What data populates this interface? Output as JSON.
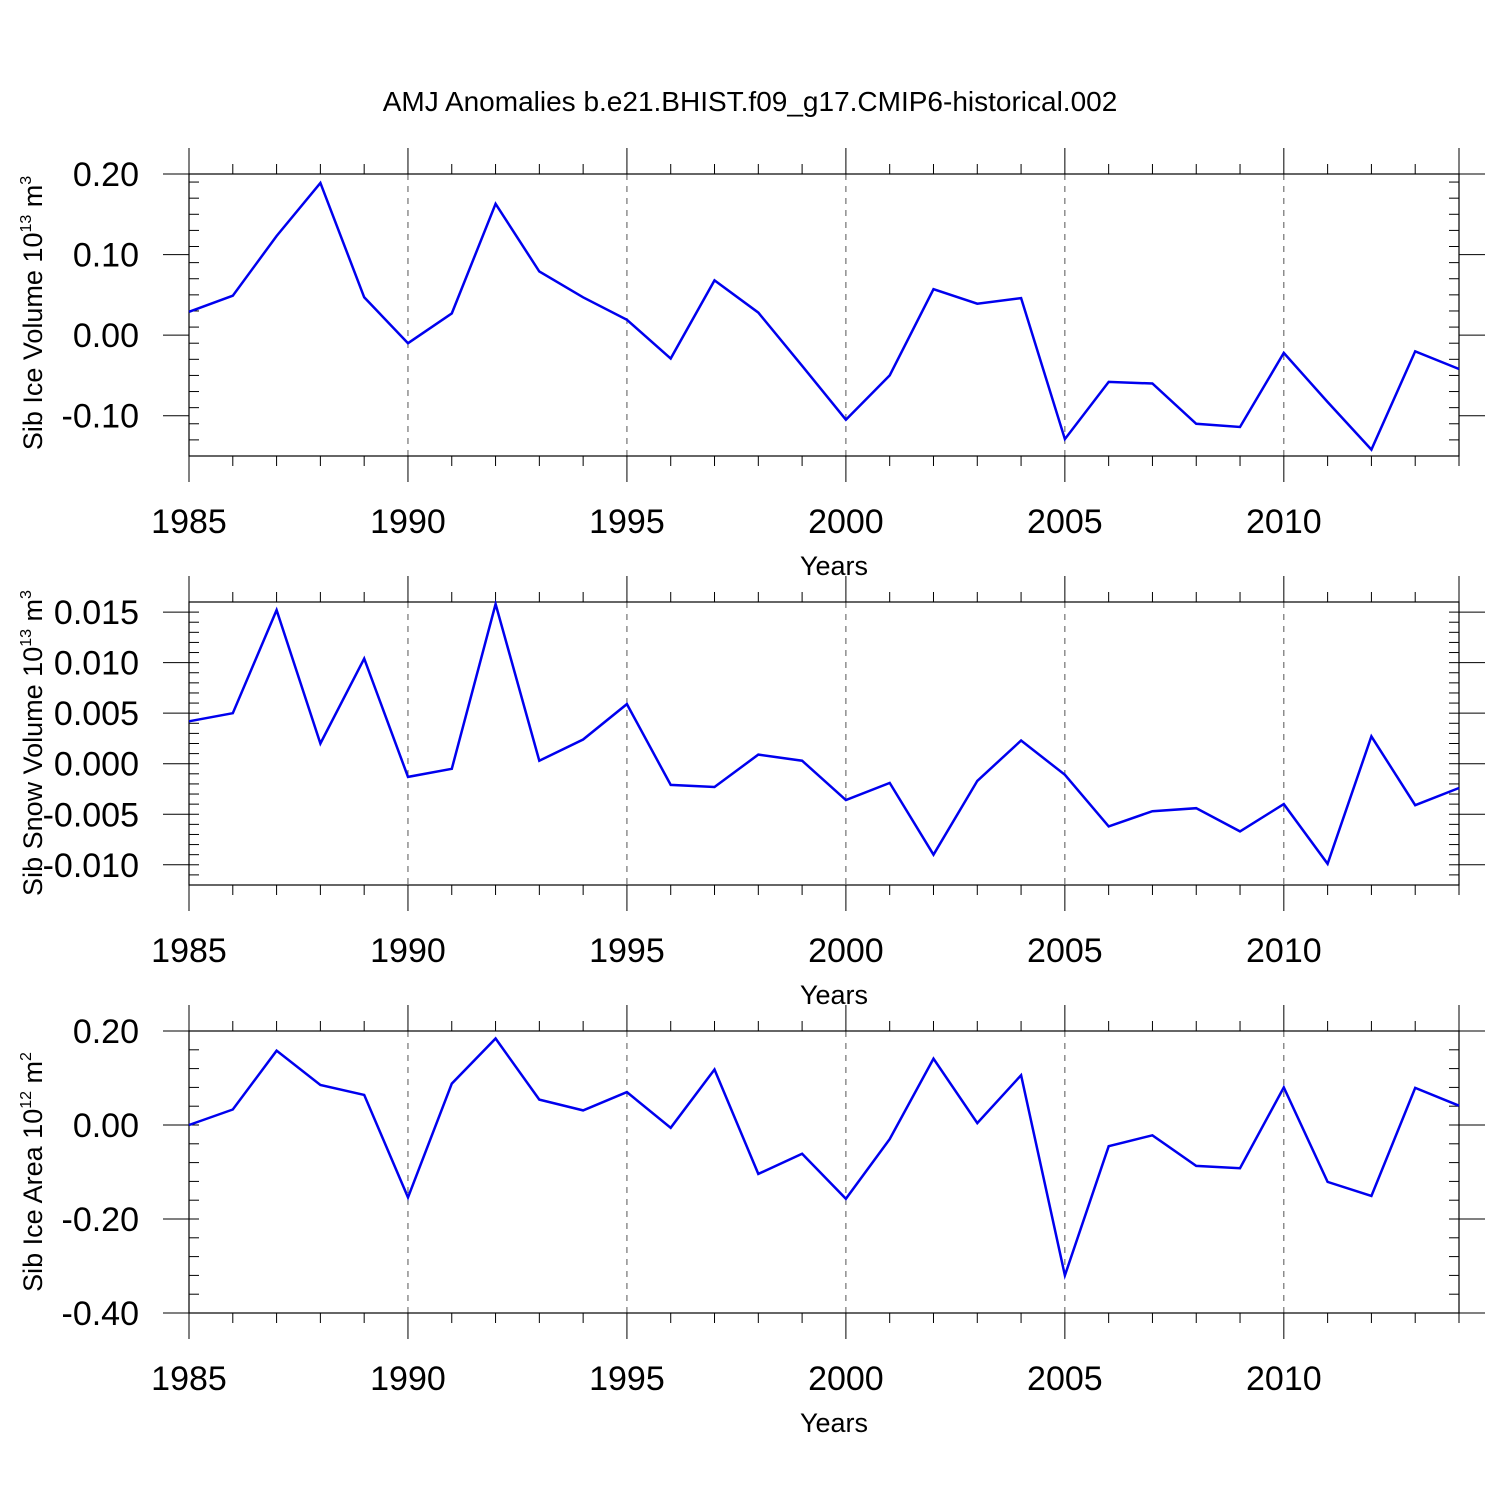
{
  "title": "AMJ Anomalies b.e21.BHIST.f09_g17.CMIP6-historical.002",
  "colors": {
    "series": "#0000ee",
    "axis": "#000000",
    "grid": "#555555"
  },
  "chart_data": [
    {
      "type": "line",
      "ylabel_main": "Sib Ice Volume 10",
      "ylabel_exp": "13",
      "ylabel_unit": " m",
      "ylabel_unit_exp": "3",
      "xlabel": "Years",
      "xlim": [
        1985,
        2014
      ],
      "ylim": [
        -0.15,
        0.2
      ],
      "yticks": [
        -0.1,
        0.0,
        0.1,
        0.2
      ],
      "ytick_labels": [
        "-0.10",
        "0.00",
        "0.10",
        "0.20"
      ],
      "xticks": [
        1985,
        1990,
        1995,
        2000,
        2005,
        2010
      ],
      "xtick_labels": [
        "1985",
        "1990",
        "1995",
        "2000",
        "2005",
        "2010"
      ],
      "grid_x": [
        1990,
        1995,
        2000,
        2005,
        2010
      ],
      "x": [
        1985,
        1986,
        1987,
        1988,
        1989,
        1990,
        1991,
        1992,
        1993,
        1994,
        1995,
        1996,
        1997,
        1998,
        1999,
        2000,
        2001,
        2002,
        2003,
        2004,
        2005,
        2006,
        2007,
        2008,
        2009,
        2010,
        2011,
        2012,
        2013,
        2014
      ],
      "series": [
        {
          "name": "Sib Ice Volume",
          "values": [
            0.029,
            0.049,
            0.123,
            0.189,
            0.047,
            -0.01,
            0.027,
            0.163,
            0.079,
            0.047,
            0.019,
            -0.029,
            0.068,
            0.028,
            -0.038,
            -0.105,
            -0.05,
            0.057,
            0.039,
            0.046,
            -0.129,
            -0.058,
            -0.06,
            -0.11,
            -0.114,
            -0.022,
            -0.083,
            -0.142,
            -0.02,
            -0.042
          ]
        }
      ]
    },
    {
      "type": "line",
      "ylabel_main": "Sib Snow Volume 10",
      "ylabel_exp": "13",
      "ylabel_unit": " m",
      "ylabel_unit_exp": "3",
      "xlabel": "Years",
      "xlim": [
        1985,
        2014
      ],
      "ylim": [
        -0.012,
        0.016
      ],
      "yticks": [
        -0.01,
        -0.005,
        0.0,
        0.005,
        0.01,
        0.015
      ],
      "ytick_labels": [
        "-0.010",
        "-0.005",
        "0.000",
        "0.005",
        "0.010",
        "0.015"
      ],
      "xticks": [
        1985,
        1990,
        1995,
        2000,
        2005,
        2010
      ],
      "xtick_labels": [
        "1985",
        "1990",
        "1995",
        "2000",
        "2005",
        "2010"
      ],
      "grid_x": [
        1990,
        1995,
        2000,
        2005,
        2010
      ],
      "x": [
        1985,
        1986,
        1987,
        1988,
        1989,
        1990,
        1991,
        1992,
        1993,
        1994,
        1995,
        1996,
        1997,
        1998,
        1999,
        2000,
        2001,
        2002,
        2003,
        2004,
        2005,
        2006,
        2007,
        2008,
        2009,
        2010,
        2011,
        2012,
        2013,
        2014
      ],
      "series": [
        {
          "name": "Sib Snow Volume",
          "values": [
            0.0042,
            0.005,
            0.0152,
            0.002,
            0.0104,
            -0.0013,
            -0.0005,
            0.0158,
            0.0003,
            0.0024,
            0.0059,
            -0.0021,
            -0.0023,
            0.0009,
            0.0003,
            -0.0036,
            -0.0019,
            -0.009,
            -0.0017,
            0.0023,
            -0.0011,
            -0.0062,
            -0.0047,
            -0.0044,
            -0.0067,
            -0.004,
            -0.0099,
            0.0027,
            -0.0041,
            -0.0024
          ]
        }
      ]
    },
    {
      "type": "line",
      "ylabel_main": "Sib Ice Area 10",
      "ylabel_exp": "12",
      "ylabel_unit": " m",
      "ylabel_unit_exp": "2",
      "xlabel": "Years",
      "xlim": [
        1985,
        2014
      ],
      "ylim": [
        -0.4,
        0.2
      ],
      "yticks": [
        -0.4,
        -0.2,
        0.0,
        0.2
      ],
      "ytick_labels": [
        "-0.40",
        "-0.20",
        "0.00",
        "0.20"
      ],
      "xticks": [
        1985,
        1990,
        1995,
        2000,
        2005,
        2010
      ],
      "xtick_labels": [
        "1985",
        "1990",
        "1995",
        "2000",
        "2005",
        "2010"
      ],
      "grid_x": [
        1990,
        1995,
        2000,
        2005,
        2010
      ],
      "x": [
        1985,
        1986,
        1987,
        1988,
        1989,
        1990,
        1991,
        1992,
        1993,
        1994,
        1995,
        1996,
        1997,
        1998,
        1999,
        2000,
        2001,
        2002,
        2003,
        2004,
        2005,
        2006,
        2007,
        2008,
        2009,
        2010,
        2011,
        2012,
        2013,
        2014
      ],
      "series": [
        {
          "name": "Sib Ice Area",
          "values": [
            0.0,
            0.033,
            0.158,
            0.085,
            0.064,
            -0.154,
            0.088,
            0.184,
            0.054,
            0.031,
            0.07,
            -0.006,
            0.118,
            -0.104,
            -0.061,
            -0.157,
            -0.03,
            0.141,
            0.004,
            0.106,
            -0.32,
            -0.045,
            -0.022,
            -0.087,
            -0.092,
            0.08,
            -0.121,
            -0.151,
            0.079,
            0.041
          ]
        }
      ]
    }
  ]
}
